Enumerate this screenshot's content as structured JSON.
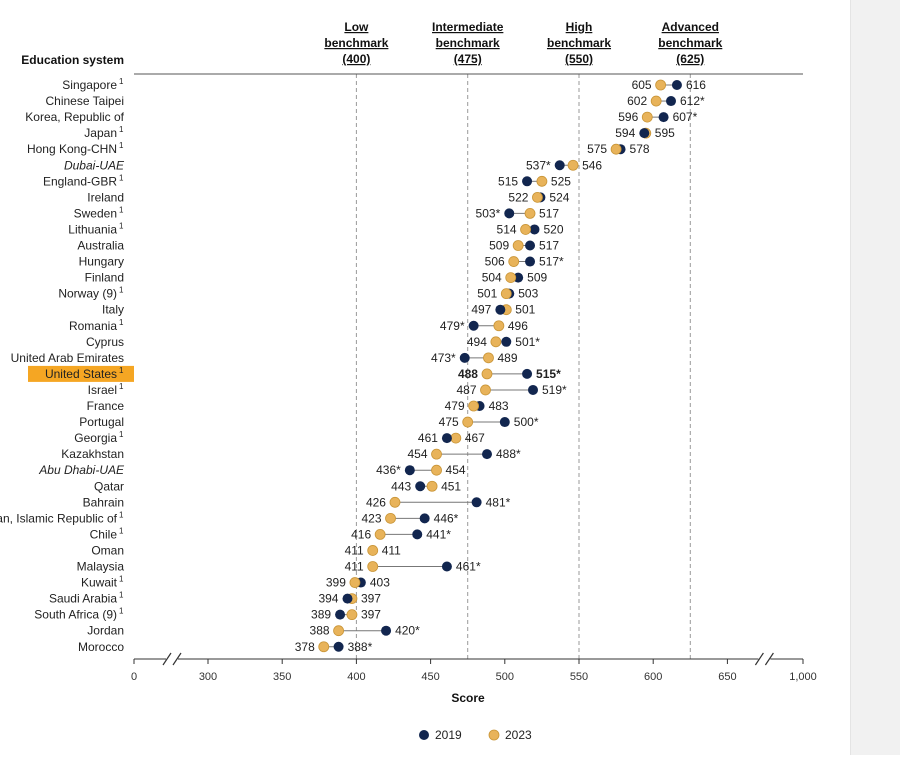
{
  "chart_data": {
    "type": "scatter",
    "subtype": "dumbbell",
    "title": "",
    "xlabel": "Score",
    "ylabel_header": "Education system",
    "xlim": [
      0,
      1000
    ],
    "axis_break_before": 300,
    "axis_break_after": 650,
    "x_ticks": [
      0,
      300,
      350,
      400,
      450,
      500,
      550,
      600,
      650,
      1000
    ],
    "x_tick_labels": [
      "0",
      "300",
      "350",
      "400",
      "450",
      "500",
      "550",
      "600",
      "650",
      "1,000"
    ],
    "benchmarks": [
      {
        "name_line1": "Low",
        "name_line2": "benchmark",
        "value_label": "(400)",
        "value": 400
      },
      {
        "name_line1": "Intermediate",
        "name_line2": "benchmark",
        "value_label": "(475)",
        "value": 475
      },
      {
        "name_line1": "High",
        "name_line2": "benchmark",
        "value_label": "(550)",
        "value": 550
      },
      {
        "name_line1": "Advanced",
        "name_line2": "benchmark",
        "value_label": "(625)",
        "value": 625
      }
    ],
    "legend": {
      "placement": "bottom",
      "items": [
        {
          "label": "2019",
          "color": "#12264f"
        },
        {
          "label": "2023",
          "color": "#e8b35a"
        }
      ]
    },
    "colors": {
      "2019": "#12264f",
      "2023": "#e8b35a",
      "highlight": "#f5a623"
    },
    "rows": [
      {
        "name": "Singapore",
        "sup": "1",
        "v2019": 616,
        "v2023": 605,
        "sig": false
      },
      {
        "name": "Chinese Taipei",
        "sup": "",
        "v2019": 612,
        "v2023": 602,
        "sig": true
      },
      {
        "name": "Korea, Republic of",
        "sup": "",
        "v2019": 607,
        "v2023": 596,
        "sig": true
      },
      {
        "name": "Japan",
        "sup": "1",
        "v2019": 594,
        "v2023": 595,
        "sig": false
      },
      {
        "name": "Hong Kong-CHN",
        "sup": "1",
        "v2019": 578,
        "v2023": 575,
        "sig": false
      },
      {
        "name": "Dubai-UAE",
        "sup": "",
        "italic": true,
        "v2019": 537,
        "v2023": 546,
        "sig": true
      },
      {
        "name": "England-GBR",
        "sup": "1",
        "v2019": 515,
        "v2023": 525,
        "sig": false
      },
      {
        "name": "Ireland",
        "sup": "",
        "v2019": 524,
        "v2023": 522,
        "sig": false
      },
      {
        "name": "Sweden",
        "sup": "1",
        "v2019": 503,
        "v2023": 517,
        "sig": true
      },
      {
        "name": "Lithuania",
        "sup": "1",
        "v2019": 520,
        "v2023": 514,
        "sig": false
      },
      {
        "name": "Australia",
        "sup": "",
        "v2019": 517,
        "v2023": 509,
        "sig": false
      },
      {
        "name": "Hungary",
        "sup": "",
        "v2019": 517,
        "v2023": 506,
        "sig": true
      },
      {
        "name": "Finland",
        "sup": "",
        "v2019": 509,
        "v2023": 504,
        "sig": false
      },
      {
        "name": "Norway (9)",
        "sup": "1",
        "v2019": 503,
        "v2023": 501,
        "sig": false
      },
      {
        "name": "Italy",
        "sup": "",
        "v2019": 497,
        "v2023": 501,
        "sig": false
      },
      {
        "name": "Romania",
        "sup": "1",
        "v2019": 479,
        "v2023": 496,
        "sig": true
      },
      {
        "name": "Cyprus",
        "sup": "",
        "v2019": 501,
        "v2023": 494,
        "sig": true
      },
      {
        "name": "United Arab Emirates",
        "sup": "",
        "v2019": 473,
        "v2023": 489,
        "sig": true
      },
      {
        "name": "United States",
        "sup": "1",
        "highlight": true,
        "v2019": 515,
        "v2023": 488,
        "sig": true
      },
      {
        "name": "Israel",
        "sup": "1",
        "v2019": 519,
        "v2023": 487,
        "sig": true
      },
      {
        "name": "France",
        "sup": "",
        "v2019": 483,
        "v2023": 479,
        "sig": false
      },
      {
        "name": "Portugal",
        "sup": "",
        "v2019": 500,
        "v2023": 475,
        "sig": true
      },
      {
        "name": "Georgia",
        "sup": "1",
        "v2019": 461,
        "v2023": 467,
        "sig": false
      },
      {
        "name": "Kazakhstan",
        "sup": "",
        "v2019": 488,
        "v2023": 454,
        "sig": true
      },
      {
        "name": "Abu Dhabi-UAE",
        "sup": "",
        "italic": true,
        "v2019": 436,
        "v2023": 454,
        "sig": true
      },
      {
        "name": "Qatar",
        "sup": "",
        "v2019": 443,
        "v2023": 451,
        "sig": false
      },
      {
        "name": "Bahrain",
        "sup": "",
        "v2019": 481,
        "v2023": 426,
        "sig": true
      },
      {
        "name": "Iran, Islamic Republic of",
        "sup": "1",
        "v2019": 446,
        "v2023": 423,
        "sig": true
      },
      {
        "name": "Chile",
        "sup": "1",
        "v2019": 441,
        "v2023": 416,
        "sig": true
      },
      {
        "name": "Oman",
        "sup": "",
        "v2019": 411,
        "v2023": 411,
        "sig": false
      },
      {
        "name": "Malaysia",
        "sup": "",
        "v2019": 461,
        "v2023": 411,
        "sig": true
      },
      {
        "name": "Kuwait",
        "sup": "1",
        "v2019": 403,
        "v2023": 399,
        "sig": false
      },
      {
        "name": "Saudi Arabia",
        "sup": "1",
        "v2019": 394,
        "v2023": 397,
        "sig": false
      },
      {
        "name": "South Africa (9)",
        "sup": "1",
        "v2019": 389,
        "v2023": 397,
        "sig": false
      },
      {
        "name": "Jordan",
        "sup": "",
        "v2019": 420,
        "v2023": 388,
        "sig": true
      },
      {
        "name": "Morocco",
        "sup": "",
        "v2019": 388,
        "v2023": 378,
        "sig": true
      }
    ]
  }
}
